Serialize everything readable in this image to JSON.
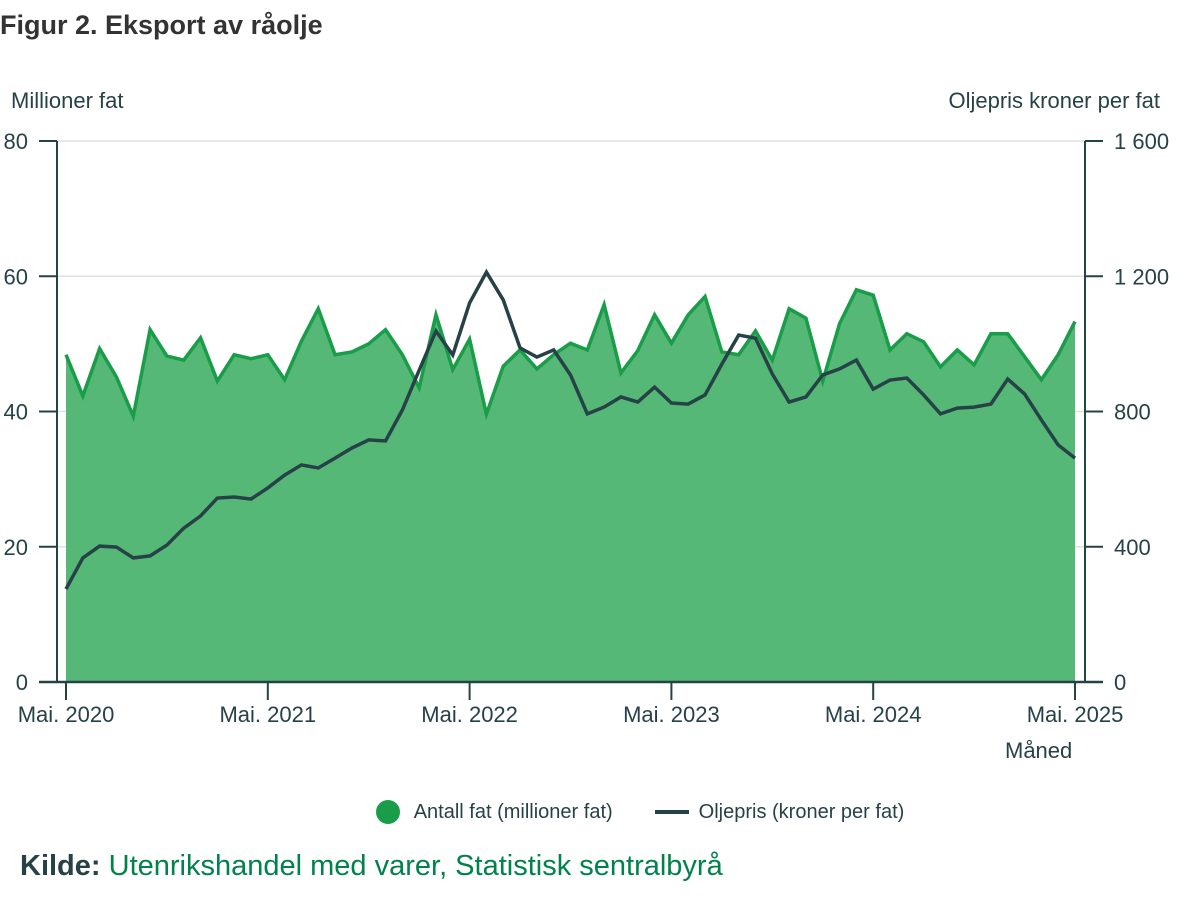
{
  "title": "Figur 2. Eksport av råolje",
  "chart_data": {
    "type": "area+line",
    "title": "Figur 2. Eksport av råolje",
    "xlabel": "Måned",
    "ylabel_left": "Millioner fat",
    "ylabel_right": "Oljepris kroner per fat",
    "x_start": "2020-05",
    "x_end": "2025-05",
    "x_ticks": [
      "Mai. 2020",
      "Mai. 2021",
      "Mai. 2022",
      "Mai. 2023",
      "Mai. 2024",
      "Mai. 2025"
    ],
    "y_left_ticks": [
      "0",
      "20",
      "40",
      "60",
      "80"
    ],
    "y_left_range": [
      0,
      80
    ],
    "y_right_ticks": [
      "0",
      "400",
      "800",
      "1 200",
      "1 600"
    ],
    "y_right_range": [
      0,
      1600
    ],
    "grid": true,
    "legend_position": "bottom",
    "series": [
      {
        "name": "Antall fat (millioner fat)",
        "type": "area",
        "axis": "left",
        "color": "#1a9d49",
        "fill": "#55b877",
        "values": [
          48.4,
          42.3,
          49.3,
          45.1,
          39.3,
          52.1,
          48.2,
          47.6,
          50.9,
          44.5,
          48.4,
          47.8,
          48.4,
          44.7,
          50.4,
          55.2,
          48.4,
          48.8,
          50.0,
          52.1,
          48.4,
          43.5,
          54.3,
          46.2,
          50.7,
          39.6,
          46.7,
          49.1,
          46.3,
          48.4,
          50.1,
          49.1,
          55.8,
          45.7,
          49.0,
          54.3,
          50.1,
          54.3,
          57.0,
          48.8,
          48.4,
          51.9,
          47.6,
          55.2,
          53.8,
          44.5,
          53.0,
          58.0,
          57.2,
          49.1,
          51.5,
          50.3,
          46.6,
          49.1,
          46.9,
          51.5,
          51.5,
          48.1,
          44.7,
          48.4,
          53.3
        ]
      },
      {
        "name": "Oljepris (kroner per fat)",
        "type": "line",
        "axis": "right",
        "color": "#274247",
        "values": [
          275,
          367,
          402,
          399,
          367,
          373,
          405,
          455,
          491,
          544,
          547,
          541,
          574,
          612,
          642,
          633,
          662,
          692,
          716,
          713,
          804,
          922,
          1038,
          967,
          1121,
          1212,
          1130,
          988,
          961,
          982,
          908,
          793,
          813,
          843,
          828,
          872,
          825,
          822,
          849,
          940,
          1026,
          1017,
          911,
          828,
          843,
          908,
          926,
          952,
          866,
          893,
          899,
          849,
          793,
          810,
          813,
          822,
          896,
          852,
          775,
          701,
          662
        ]
      }
    ]
  },
  "legend": {
    "items": [
      {
        "label": "Antall fat (millioner fat)",
        "color": "#1a9d49"
      },
      {
        "label": "Oljepris (kroner per fat)",
        "color": "#274247"
      }
    ]
  },
  "source": {
    "key": "Kilde:",
    "value": "Utenrikshandel med varer, Statistisk sentralbyrå"
  }
}
